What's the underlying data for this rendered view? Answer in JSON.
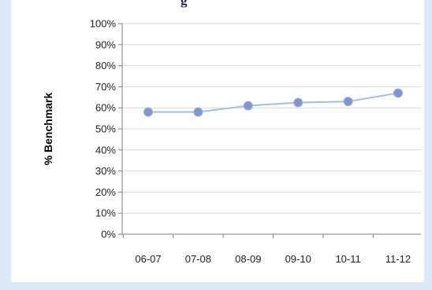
{
  "title_fragment": "g",
  "chart_data": {
    "type": "line",
    "title": "",
    "xlabel": "",
    "ylabel": "% Benchmark",
    "categories": [
      "06-07",
      "07-08",
      "08-09",
      "09-10",
      "10-11",
      "11-12"
    ],
    "values": [
      58,
      58,
      61,
      62.5,
      63,
      67
    ],
    "ylim": [
      0,
      100
    ],
    "yticks": [
      0,
      10,
      20,
      30,
      40,
      50,
      60,
      70,
      80,
      90,
      100
    ],
    "ytick_labels": [
      "0%",
      "10%",
      "20%",
      "30%",
      "40%",
      "50%",
      "60%",
      "70%",
      "80%",
      "90%",
      "100%"
    ],
    "grid": true,
    "legend": "none",
    "colors": {
      "line": "#a9bce4",
      "marker": "#7f97cf",
      "grid": "#d9d9d9",
      "axis": "#808080",
      "background": "#dbe9f9"
    }
  }
}
